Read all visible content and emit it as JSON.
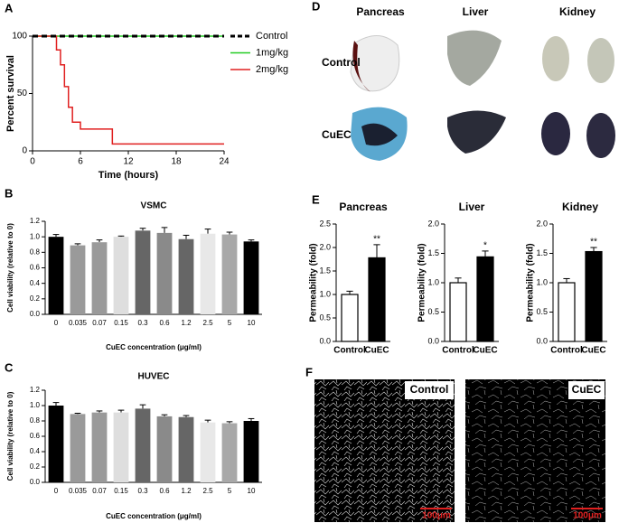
{
  "chart_data": [
    {
      "type": "line",
      "panel": "A",
      "step": "post",
      "xlabel": "Time (hours)",
      "ylabel": "Percent survival",
      "x": [
        0,
        3,
        3.5,
        4,
        4.5,
        5,
        6,
        10,
        24
      ],
      "xlim": [
        0,
        24
      ],
      "xticks": [
        0,
        6,
        12,
        18,
        24
      ],
      "ylim": [
        0,
        100
      ],
      "yticks": [
        0,
        50,
        100
      ],
      "series": [
        {
          "name": "Control",
          "color": "#000000",
          "dashed": true,
          "values": [
            100,
            100,
            100,
            100,
            100,
            100,
            100,
            100,
            100
          ]
        },
        {
          "name": "1mg/kg",
          "color": "#22cc22",
          "values": [
            100,
            100,
            100,
            100,
            100,
            100,
            100,
            100,
            100
          ]
        },
        {
          "name": "2mg/kg",
          "color": "#e02020",
          "values": [
            100,
            88,
            75,
            56,
            38,
            25,
            19,
            6,
            6
          ]
        }
      ]
    },
    {
      "type": "bar",
      "panel": "B",
      "title": "VSMC",
      "xlabel": "CuEC concentration (μg/ml)",
      "ylabel": "Cell viability (relative to 0)",
      "categories": [
        "0",
        "0.035",
        "0.07",
        "0.15",
        "0.3",
        "0.6",
        "1.2",
        "2.5",
        "5",
        "10"
      ],
      "values": [
        1.0,
        0.89,
        0.93,
        1.0,
        1.08,
        1.05,
        0.97,
        1.04,
        1.03,
        0.94
      ],
      "errors": [
        0.03,
        0.02,
        0.03,
        0.01,
        0.03,
        0.07,
        0.05,
        0.06,
        0.03,
        0.02
      ],
      "colors": [
        "#000000",
        "#9a9a9a",
        "#9a9a9a",
        "#dedede",
        "#666666",
        "#8a8a8a",
        "#666666",
        "#e8e8e8",
        "#a8a8a8",
        "#000000"
      ],
      "ylim": [
        0,
        1.2
      ],
      "yticks": [
        {
          "value": 0,
          "label": "0.0"
        },
        0.2,
        0.4,
        0.6,
        0.8,
        {
          "value": 1,
          "label": "1.0"
        },
        1.2
      ]
    },
    {
      "type": "bar",
      "panel": "C",
      "title": "HUVEC",
      "xlabel": "CuEC concentration (μg/ml)",
      "ylabel": "Cell viability (relative to 0)",
      "categories": [
        "0",
        "0.035",
        "0.07",
        "0.15",
        "0.3",
        "0.6",
        "1.2",
        "2.5",
        "5",
        "10"
      ],
      "values": [
        1.0,
        0.89,
        0.91,
        0.91,
        0.96,
        0.86,
        0.85,
        0.78,
        0.77,
        0.8
      ],
      "errors": [
        0.04,
        0.01,
        0.02,
        0.03,
        0.05,
        0.02,
        0.02,
        0.03,
        0.02,
        0.03
      ],
      "colors": [
        "#000000",
        "#9a9a9a",
        "#9a9a9a",
        "#dedede",
        "#666666",
        "#8a8a8a",
        "#666666",
        "#e8e8e8",
        "#a8a8a8",
        "#000000"
      ],
      "ylim": [
        0,
        1.2
      ],
      "yticks": [
        {
          "value": 0,
          "label": "0.0"
        },
        0.2,
        0.4,
        0.6,
        0.8,
        {
          "value": 1,
          "label": "1.0"
        },
        1.2
      ]
    },
    {
      "type": "bar",
      "panel": "E",
      "title": "Pancreas",
      "ylabel": "Permeability (fold)",
      "significance": "**",
      "categories": [
        "Control",
        "CuEC"
      ],
      "values": [
        1.0,
        1.78
      ],
      "errors": [
        0.07,
        0.28
      ],
      "colors": [
        "#ffffff",
        "#000000"
      ],
      "ylim": [
        0,
        2.5
      ],
      "yticks": [
        {
          "value": 0,
          "label": "0.0"
        },
        0.5,
        {
          "value": 1,
          "label": "1.0"
        },
        1.5,
        {
          "value": 2,
          "label": "2.0"
        },
        2.5
      ]
    },
    {
      "type": "bar",
      "title": "Liver",
      "ylabel": "Permeability (fold)",
      "significance": "*",
      "categories": [
        "Control",
        "CuEC"
      ],
      "values": [
        1.0,
        1.44
      ],
      "errors": [
        0.08,
        0.1
      ],
      "colors": [
        "#ffffff",
        "#000000"
      ],
      "ylim": [
        0,
        2
      ],
      "yticks": [
        {
          "value": 0,
          "label": "0.0"
        },
        0.5,
        {
          "value": 1,
          "label": "1.0"
        },
        1.5,
        {
          "value": 2,
          "label": "2.0"
        }
      ]
    },
    {
      "type": "bar",
      "title": "Kidney",
      "ylabel": "Permeability (fold)",
      "significance": "**",
      "categories": [
        "Control",
        "CuEC"
      ],
      "values": [
        1.0,
        1.53
      ],
      "errors": [
        0.07,
        0.07
      ],
      "colors": [
        "#ffffff",
        "#000000"
      ],
      "ylim": [
        0,
        2
      ],
      "yticks": [
        {
          "value": 0,
          "label": "0.0"
        },
        0.5,
        {
          "value": 1,
          "label": "1.0"
        },
        1.5,
        {
          "value": 2,
          "label": "2.0"
        }
      ]
    }
  ],
  "images": [
    {
      "panel": "D",
      "columns": [
        "Pancreas",
        "Liver",
        "Kidney"
      ],
      "rows": [
        "Control",
        "CuEC"
      ]
    },
    {
      "panel": "F",
      "labels": [
        "Control",
        "CuEC"
      ],
      "scale": "100μm"
    }
  ]
}
